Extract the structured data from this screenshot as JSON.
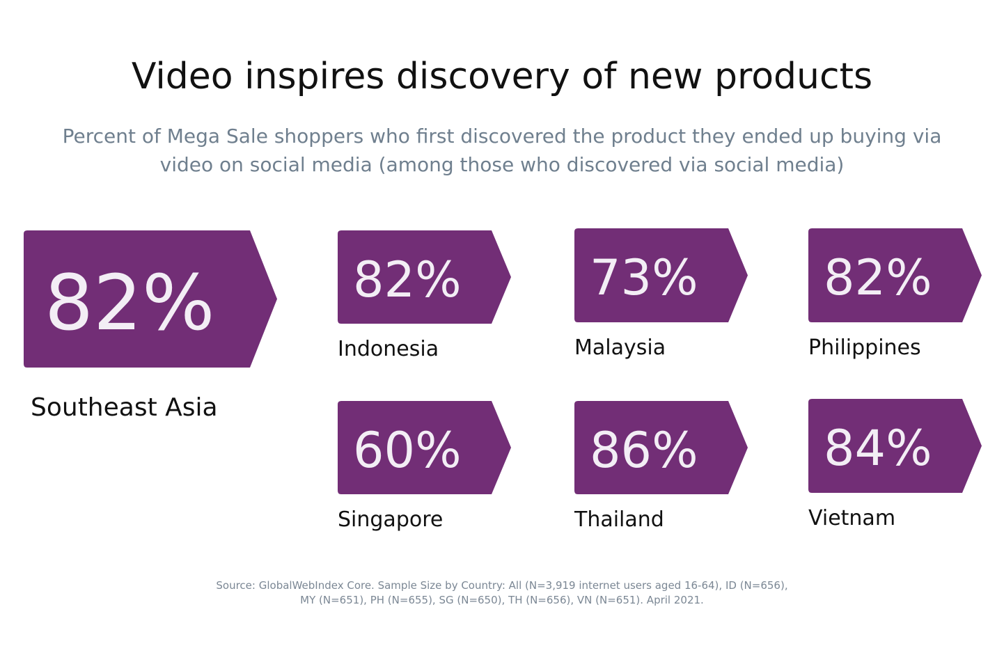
{
  "title": "Video inspires discovery of new products",
  "subtitle": "Percent of Mega Sale shoppers who first discovered the product they ended up buying via video on social media (among those who discovered via social media)",
  "colors": {
    "badge": "#722e76",
    "badge_text": "#f3eef5",
    "label": "#111111",
    "subtitle": "#6f7f8e",
    "footnote": "#7b8794"
  },
  "chart_data": {
    "type": "table",
    "title": "Video inspires discovery of new products",
    "subtitle": "Percent of Mega Sale shoppers who first discovered the product they ended up buying via video on social media (among those who discovered via social media)",
    "unit": "%",
    "categories": [
      "Southeast Asia",
      "Indonesia",
      "Malaysia",
      "Philippines",
      "Singapore",
      "Thailand",
      "Vietnam"
    ],
    "values": [
      82,
      82,
      73,
      82,
      60,
      86,
      84
    ],
    "items": [
      {
        "region": "Southeast Asia",
        "value": 82,
        "display": "82%"
      },
      {
        "region": "Indonesia",
        "value": 82,
        "display": "82%"
      },
      {
        "region": "Malaysia",
        "value": 73,
        "display": "73%"
      },
      {
        "region": "Philippines",
        "value": 82,
        "display": "82%"
      },
      {
        "region": "Singapore",
        "value": 60,
        "display": "60%"
      },
      {
        "region": "Thailand",
        "value": 86,
        "display": "86%"
      },
      {
        "region": "Vietnam",
        "value": 84,
        "display": "84%"
      }
    ]
  },
  "source": "Source: GlobalWebIndex Core. Sample Size by Country: All (N=3,919 internet users aged 16-64), ID (N=656), MY (N=651), PH (N=655), SG (N=650), TH (N=656), VN (N=651). April 2021."
}
